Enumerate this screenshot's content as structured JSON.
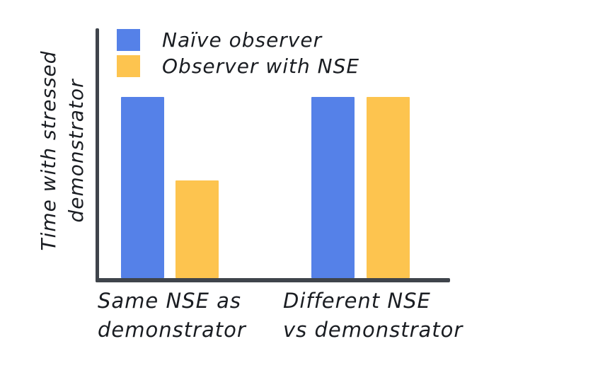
{
  "figure": {
    "background": "#ffffff",
    "text_color": "#1a1d22",
    "axis_color": "#3f444b"
  },
  "legend": {
    "items": [
      {
        "label": "Naïve observer",
        "color": "#5581e8"
      },
      {
        "label": "Observer with NSE",
        "color": "#fdc44f"
      }
    ]
  },
  "y_axis": {
    "label": "Time with stressed demonstrator",
    "label_lines": [
      "Time with stressed",
      "demonstrator"
    ],
    "ticks": "none"
  },
  "x_axis": {
    "categories": [
      {
        "lines": [
          "Same NSE as",
          "demonstrator"
        ]
      },
      {
        "lines": [
          "Different NSE",
          "vs demonstrator"
        ]
      }
    ]
  },
  "chart_data": {
    "type": "bar",
    "title": "",
    "xlabel": "",
    "ylabel": "Time with stressed demonstrator",
    "categories": [
      "Same NSE as demonstrator",
      "Different NSE vs demonstrator"
    ],
    "series": [
      {
        "name": "Naïve observer",
        "color": "#5581e8",
        "values": [
          1.0,
          1.0
        ]
      },
      {
        "name": "Observer with NSE",
        "color": "#fdc44f",
        "values": [
          0.54,
          1.0
        ]
      }
    ],
    "ylim": [
      0,
      1.15
    ],
    "y_ticks": "none",
    "grid": false,
    "legend_position": "upper-left-inside",
    "note": "No numeric y-axis shown; values are normalized bar heights read from pixels."
  }
}
